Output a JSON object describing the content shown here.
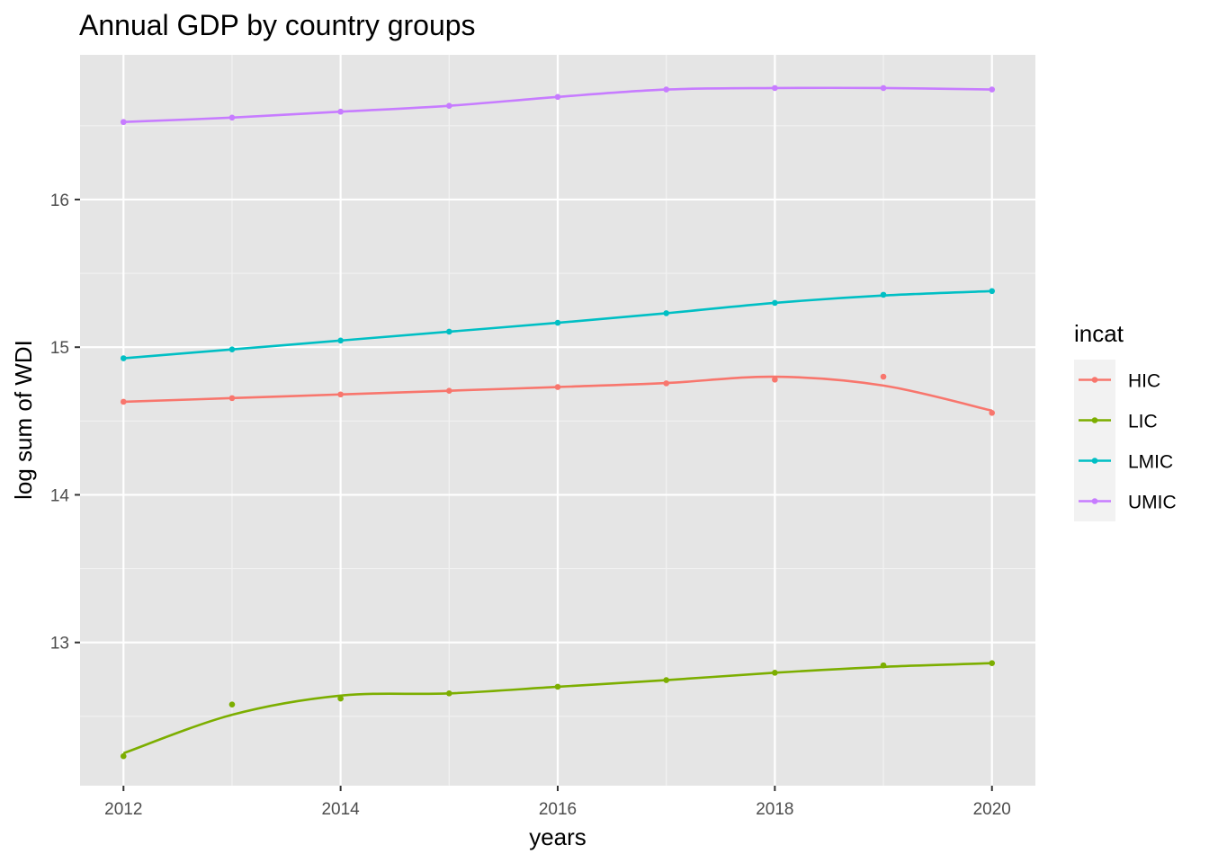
{
  "chart_data": {
    "type": "line",
    "title": "Annual GDP by country groups",
    "xlabel": "years",
    "ylabel": "log sum of WDI",
    "xlim": [
      2011.6,
      2020.4
    ],
    "ylim": [
      12.03,
      16.98
    ],
    "x_ticks": [
      2012,
      2014,
      2016,
      2018,
      2020
    ],
    "y_ticks": [
      13,
      14,
      15,
      16
    ],
    "grid": true,
    "background": "#E5E5E5",
    "legend": {
      "title": "incat",
      "position": "right"
    },
    "x": [
      2012,
      2013,
      2014,
      2015,
      2016,
      2017,
      2018,
      2019,
      2020
    ],
    "series": [
      {
        "name": "HIC",
        "color": "#F8766D",
        "points": [
          14.63,
          14.655,
          14.68,
          14.705,
          14.73,
          14.755,
          14.78,
          14.8,
          14.555
        ],
        "smooth": [
          14.63,
          14.655,
          14.68,
          14.705,
          14.73,
          14.757,
          14.8,
          14.74,
          14.57
        ]
      },
      {
        "name": "LIC",
        "color": "#7CAE00",
        "points": [
          12.23,
          12.58,
          12.62,
          12.655,
          12.7,
          12.745,
          12.795,
          12.845,
          12.86
        ],
        "smooth": [
          12.25,
          12.51,
          12.64,
          12.655,
          12.7,
          12.745,
          12.795,
          12.835,
          12.86
        ]
      },
      {
        "name": "LMIC",
        "color": "#00BFC4",
        "points": [
          14.925,
          14.985,
          15.045,
          15.105,
          15.165,
          15.23,
          15.3,
          15.355,
          15.38
        ],
        "smooth": [
          14.925,
          14.985,
          15.045,
          15.105,
          15.165,
          15.23,
          15.3,
          15.35,
          15.38
        ]
      },
      {
        "name": "UMIC",
        "color": "#C77CFF",
        "points": [
          16.525,
          16.555,
          16.595,
          16.635,
          16.695,
          16.745,
          16.755,
          16.755,
          16.745
        ],
        "smooth": [
          16.525,
          16.555,
          16.595,
          16.635,
          16.695,
          16.745,
          16.755,
          16.755,
          16.745
        ]
      }
    ]
  }
}
